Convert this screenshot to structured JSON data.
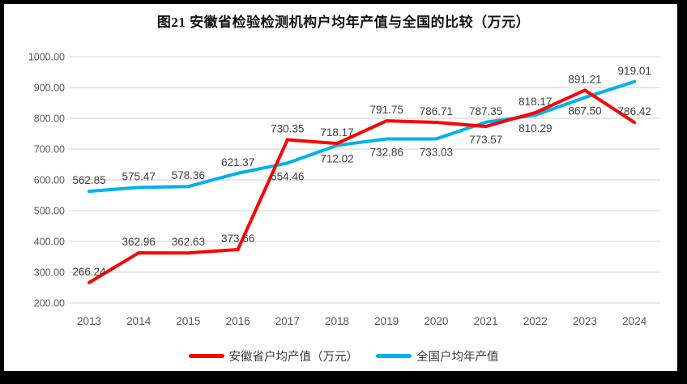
{
  "title": "图21 安徽省检验检测机构户均年产值与全国的比较（万元）",
  "legend": [
    {
      "label": "安徽省户均产值（万元）",
      "color": "#FF0000"
    },
    {
      "label": "全国户均年产值",
      "color": "#00B0F0"
    }
  ],
  "chart_data": {
    "type": "line",
    "categories": [
      "2013",
      "2014",
      "2015",
      "2016",
      "2017",
      "2018",
      "2019",
      "2020",
      "2021",
      "2022",
      "2023",
      "2024"
    ],
    "series": [
      {
        "name": "安徽省户均产值（万元）",
        "color": "#FF0000",
        "values": [
          266.24,
          362.96,
          362.63,
          373.66,
          730.35,
          718.17,
          791.75,
          786.71,
          773.57,
          818.17,
          891.21,
          786.42
        ],
        "label_side": [
          "above",
          "above",
          "above",
          "above",
          "above",
          "above",
          "above",
          "above",
          "below",
          "above",
          "above",
          "above"
        ]
      },
      {
        "name": "全国户均年产值",
        "color": "#00B0F0",
        "values": [
          562.85,
          575.47,
          578.36,
          621.37,
          654.46,
          712.02,
          732.86,
          733.03,
          787.35,
          810.29,
          867.5,
          919.01
        ],
        "label_side": [
          "above",
          "above",
          "above",
          "above",
          "below",
          "below",
          "below",
          "below",
          "above",
          "below",
          "below",
          "above"
        ]
      }
    ],
    "ylim": [
      200,
      1000
    ],
    "ytick_step": 100,
    "ytick_labels": [
      "200.00",
      "300.00",
      "400.00",
      "500.00",
      "600.00",
      "700.00",
      "800.00",
      "900.00",
      "1000.00"
    ],
    "grid": true,
    "legend_position": "bottom",
    "gridline_color": "#D9D9D9",
    "axis_text_color": "#595959",
    "data_label_color": "#404040",
    "line_width": 4
  }
}
